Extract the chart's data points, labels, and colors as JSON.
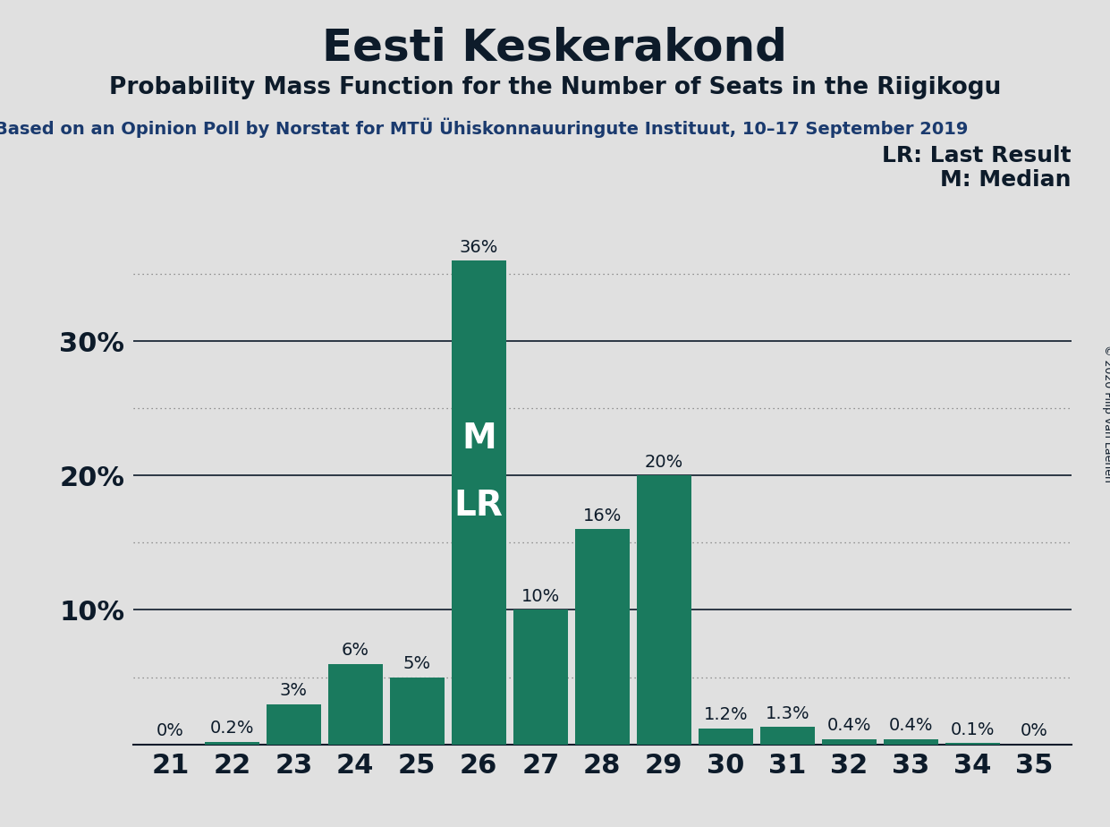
{
  "title": "Eesti Keskerakond",
  "subtitle": "Probability Mass Function for the Number of Seats in the Riigikogu",
  "source_line": "Based on an Opinion Poll by Norstat for MTÜ Ühiskonnauuringute Instituut, 10–17 September 2019",
  "copyright": "© 2020 Filip van Laenen",
  "categories": [
    21,
    22,
    23,
    24,
    25,
    26,
    27,
    28,
    29,
    30,
    31,
    32,
    33,
    34,
    35
  ],
  "values": [
    0.0,
    0.2,
    3.0,
    6.0,
    5.0,
    36.0,
    10.0,
    16.0,
    20.0,
    1.2,
    1.3,
    0.4,
    0.4,
    0.1,
    0.0
  ],
  "labels": [
    "0%",
    "0.2%",
    "3%",
    "6%",
    "5%",
    "36%",
    "10%",
    "16%",
    "20%",
    "1.2%",
    "1.3%",
    "0.4%",
    "0.4%",
    "0.1%",
    "0%"
  ],
  "bar_color": "#1a7a5e",
  "median_seat": 26,
  "lr_seat": 26,
  "legend_lr": "LR: Last Result",
  "legend_m": "M: Median",
  "bg_color": "#e0e0e0",
  "title_color": "#0d1b2a",
  "source_color": "#1a3a6e",
  "ymax": 40,
  "grid_solid_color": "#0d1b2a",
  "grid_dot_color": "#777777",
  "label_fontsize": 14,
  "title_fontsize": 36,
  "subtitle_fontsize": 19,
  "source_fontsize": 14,
  "axis_tick_fontsize": 22,
  "legend_fontsize": 18,
  "copyright_fontsize": 9,
  "ytick_show": [
    10,
    20,
    30
  ],
  "ytick_dotted": [
    5,
    15,
    25,
    35
  ],
  "ml_fontsize": 28
}
